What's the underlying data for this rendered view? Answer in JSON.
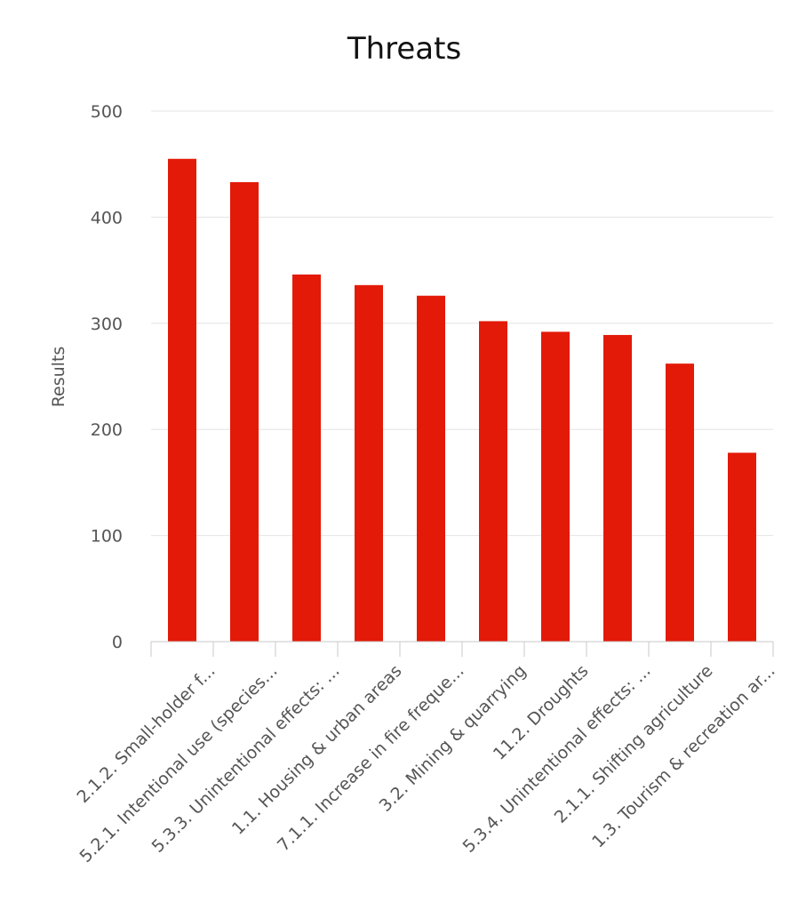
{
  "chart_data": {
    "type": "bar",
    "title": "Threats",
    "xlabel": "",
    "ylabel": "Results",
    "ylim": [
      0,
      500
    ],
    "yticks": [
      0,
      100,
      200,
      300,
      400,
      500
    ],
    "grid": true,
    "legend": "none",
    "color": "#e31a07",
    "categories": [
      "2.1.2. Small-holder f...",
      "5.2.1. Intentional use (species...",
      "5.3.3. Unintentional effects: ...",
      "1.1. Housing & urban areas",
      "7.1.1. Increase in fire freque...",
      "3.2. Mining & quarrying",
      "11.2. Droughts",
      "5.3.4. Unintentional effects: ...",
      "2.1.1. Shifting agriculture",
      "1.3. Tourism & recreation ar..."
    ],
    "values": [
      455,
      433,
      346,
      336,
      326,
      302,
      292,
      289,
      262,
      178
    ]
  }
}
